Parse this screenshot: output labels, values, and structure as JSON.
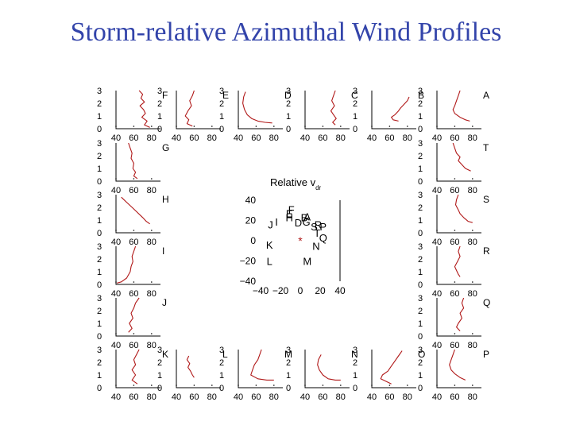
{
  "title": "Storm-relative Azimuthal Wind Profiles",
  "chart_data": {
    "type": "line",
    "x_ticks": [
      "40",
      "60",
      "80"
    ],
    "y_ticks": [
      "0",
      "1",
      "2",
      "3"
    ],
    "xlim": [
      40,
      90
    ],
    "ylim": [
      0,
      3
    ],
    "line_color": "#b01818",
    "panels": [
      {
        "label": "F",
        "pos": "top-1",
        "points": [
          [
            66,
            3.0
          ],
          [
            70,
            2.7
          ],
          [
            68,
            2.4
          ],
          [
            72,
            2.1
          ],
          [
            67,
            1.8
          ],
          [
            71,
            1.5
          ],
          [
            73,
            1.2
          ],
          [
            69,
            0.9
          ],
          [
            75,
            0.6
          ],
          [
            72,
            0.3
          ],
          [
            78,
            0.1
          ]
        ]
      },
      {
        "label": "E",
        "pos": "top-2",
        "points": [
          [
            60,
            3.0
          ],
          [
            58,
            2.6
          ],
          [
            55,
            2.2
          ],
          [
            57,
            1.8
          ],
          [
            53,
            1.4
          ],
          [
            50,
            1.0
          ],
          [
            54,
            0.7
          ],
          [
            52,
            0.4
          ],
          [
            58,
            0.2
          ]
        ]
      },
      {
        "label": "D",
        "pos": "top-3",
        "points": [
          [
            48,
            2.9
          ],
          [
            46,
            2.5
          ],
          [
            45,
            2.0
          ],
          [
            47,
            1.5
          ],
          [
            50,
            1.1
          ],
          [
            55,
            0.8
          ],
          [
            62,
            0.6
          ],
          [
            70,
            0.5
          ],
          [
            78,
            0.45
          ]
        ]
      },
      {
        "label": "C",
        "pos": "top-4",
        "points": [
          [
            74,
            3.0
          ],
          [
            72,
            2.6
          ],
          [
            70,
            2.2
          ],
          [
            73,
            1.8
          ],
          [
            69,
            1.4
          ],
          [
            72,
            1.1
          ],
          [
            75,
            0.8
          ],
          [
            71,
            0.5
          ],
          [
            74,
            0.3
          ]
        ]
      },
      {
        "label": "B",
        "pos": "top-5",
        "points": [
          [
            82,
            2.5
          ],
          [
            80,
            2.2
          ],
          [
            76,
            1.9
          ],
          [
            72,
            1.6
          ],
          [
            70,
            1.4
          ],
          [
            66,
            1.1
          ],
          [
            62,
            0.9
          ],
          [
            64,
            0.7
          ],
          [
            70,
            0.6
          ]
        ]
      },
      {
        "label": "A",
        "pos": "top-6",
        "points": [
          [
            66,
            3.0
          ],
          [
            64,
            2.6
          ],
          [
            62,
            2.2
          ],
          [
            60,
            1.8
          ],
          [
            58,
            1.5
          ],
          [
            60,
            1.2
          ],
          [
            66,
            0.9
          ],
          [
            72,
            0.7
          ],
          [
            77,
            0.6
          ]
        ]
      },
      {
        "label": "G",
        "pos": "left-1",
        "points": [
          [
            54,
            3.0
          ],
          [
            56,
            2.6
          ],
          [
            58,
            2.2
          ],
          [
            57,
            1.8
          ],
          [
            60,
            1.4
          ],
          [
            59,
            1.0
          ],
          [
            62,
            0.7
          ],
          [
            60,
            0.4
          ],
          [
            64,
            0.2
          ]
        ]
      },
      {
        "label": "H",
        "pos": "left-2",
        "points": [
          [
            46,
            2.8
          ],
          [
            52,
            2.4
          ],
          [
            58,
            2.0
          ],
          [
            64,
            1.6
          ],
          [
            70,
            1.2
          ],
          [
            74,
            0.9
          ],
          [
            78,
            0.7
          ]
        ]
      },
      {
        "label": "I",
        "pos": "left-3",
        "points": [
          [
            62,
            3.0
          ],
          [
            60,
            2.6
          ],
          [
            58,
            2.2
          ],
          [
            59,
            1.8
          ],
          [
            57,
            1.4
          ],
          [
            56,
            1.0
          ],
          [
            52,
            0.5
          ],
          [
            46,
            0.2
          ],
          [
            41,
            0.1
          ]
        ]
      },
      {
        "label": "J",
        "pos": "left-4",
        "points": [
          [
            66,
            3.0
          ],
          [
            62,
            2.6
          ],
          [
            60,
            2.2
          ],
          [
            57,
            1.8
          ],
          [
            59,
            1.4
          ],
          [
            55,
            1.0
          ],
          [
            58,
            0.6
          ],
          [
            54,
            0.3
          ]
        ]
      },
      {
        "label": "K",
        "pos": "bottom-1",
        "points": [
          [
            66,
            3.0
          ],
          [
            63,
            2.6
          ],
          [
            60,
            2.2
          ],
          [
            62,
            1.8
          ],
          [
            58,
            1.4
          ],
          [
            62,
            1.0
          ],
          [
            58,
            0.6
          ],
          [
            64,
            0.3
          ]
        ]
      },
      {
        "label": "L",
        "pos": "bottom-2",
        "points": [
          [
            54,
            2.5
          ],
          [
            52,
            2.2
          ],
          [
            55,
            1.9
          ],
          [
            53,
            1.6
          ],
          [
            56,
            1.3
          ],
          [
            58,
            1.0
          ],
          [
            60,
            0.8
          ]
        ]
      },
      {
        "label": "M",
        "pos": "bottom-3",
        "points": [
          [
            66,
            3.0
          ],
          [
            64,
            2.6
          ],
          [
            62,
            2.2
          ],
          [
            58,
            1.8
          ],
          [
            56,
            1.4
          ],
          [
            54,
            1.0
          ],
          [
            62,
            0.7
          ],
          [
            72,
            0.6
          ],
          [
            80,
            0.6
          ]
        ]
      },
      {
        "label": "N",
        "pos": "bottom-4",
        "points": [
          [
            58,
            2.6
          ],
          [
            55,
            2.2
          ],
          [
            54,
            1.8
          ],
          [
            56,
            1.4
          ],
          [
            60,
            1.0
          ],
          [
            66,
            0.7
          ],
          [
            74,
            0.6
          ],
          [
            80,
            0.6
          ]
        ]
      },
      {
        "label": "O",
        "pos": "bottom-5",
        "points": [
          [
            74,
            2.9
          ],
          [
            70,
            2.5
          ],
          [
            66,
            2.1
          ],
          [
            62,
            1.7
          ],
          [
            58,
            1.3
          ],
          [
            52,
            1.0
          ],
          [
            50,
            0.7
          ],
          [
            56,
            0.5
          ],
          [
            62,
            0.3
          ]
        ]
      },
      {
        "label": "P",
        "pos": "right-5",
        "points": [
          [
            60,
            3.0
          ],
          [
            58,
            2.6
          ],
          [
            56,
            2.2
          ],
          [
            54,
            1.8
          ],
          [
            56,
            1.4
          ],
          [
            60,
            1.1
          ],
          [
            66,
            0.8
          ],
          [
            72,
            0.6
          ]
        ]
      },
      {
        "label": "T",
        "pos": "right-1",
        "points": [
          [
            58,
            3.0
          ],
          [
            60,
            2.6
          ],
          [
            62,
            2.2
          ],
          [
            66,
            1.9
          ],
          [
            64,
            1.6
          ],
          [
            68,
            1.3
          ],
          [
            72,
            1.0
          ],
          [
            78,
            0.8
          ]
        ]
      },
      {
        "label": "S",
        "pos": "right-2",
        "points": [
          [
            64,
            3.0
          ],
          [
            62,
            2.6
          ],
          [
            61,
            2.2
          ],
          [
            64,
            1.8
          ],
          [
            66,
            1.5
          ],
          [
            70,
            1.2
          ],
          [
            75,
            0.9
          ],
          [
            80,
            0.8
          ]
        ]
      },
      {
        "label": "R",
        "pos": "right-3",
        "points": [
          [
            66,
            3.0
          ],
          [
            64,
            2.6
          ],
          [
            66,
            2.2
          ],
          [
            63,
            1.8
          ],
          [
            60,
            1.4
          ],
          [
            62,
            1.1
          ],
          [
            64,
            0.8
          ],
          [
            66,
            0.6
          ]
        ]
      },
      {
        "label": "Q",
        "pos": "right-4",
        "points": [
          [
            70,
            3.0
          ],
          [
            68,
            2.6
          ],
          [
            70,
            2.2
          ],
          [
            66,
            1.8
          ],
          [
            68,
            1.4
          ],
          [
            64,
            1.0
          ],
          [
            62,
            0.7
          ],
          [
            66,
            0.4
          ]
        ]
      }
    ],
    "center": {
      "type": "scatter",
      "title": "Relative v",
      "title_subscript": "dr",
      "x_ticks": [
        "−40",
        "−20",
        "0",
        "20",
        "40"
      ],
      "y_ticks": [
        "40",
        "20",
        "0",
        "−20",
        "−40"
      ],
      "xlim": [
        -40,
        40
      ],
      "ylim": [
        -40,
        40
      ],
      "origin_marker": "*",
      "marker_color": "#b01818",
      "labels": [
        {
          "text": "F",
          "x": -9,
          "y": 31
        },
        {
          "text": "E",
          "x": -11,
          "y": 27
        },
        {
          "text": "H",
          "x": -11,
          "y": 23
        },
        {
          "text": "B",
          "x": 4,
          "y": 23
        },
        {
          "text": "A",
          "x": 7,
          "y": 24
        },
        {
          "text": "I",
          "x": -24,
          "y": 19
        },
        {
          "text": "J",
          "x": -30,
          "y": 16
        },
        {
          "text": "D",
          "x": -2,
          "y": 18
        },
        {
          "text": "G",
          "x": 6,
          "y": 19
        },
        {
          "text": "R",
          "x": 18,
          "y": 16
        },
        {
          "text": "S",
          "x": 14,
          "y": 14
        },
        {
          "text": "P",
          "x": 23,
          "y": 14
        },
        {
          "text": "T",
          "x": 17,
          "y": 8
        },
        {
          "text": "Q",
          "x": 23,
          "y": 3
        },
        {
          "text": "K",
          "x": -31,
          "y": -4
        },
        {
          "text": "N",
          "x": 16,
          "y": -5
        },
        {
          "text": "L",
          "x": -31,
          "y": -20
        },
        {
          "text": "M",
          "x": 7,
          "y": -20
        }
      ]
    }
  }
}
